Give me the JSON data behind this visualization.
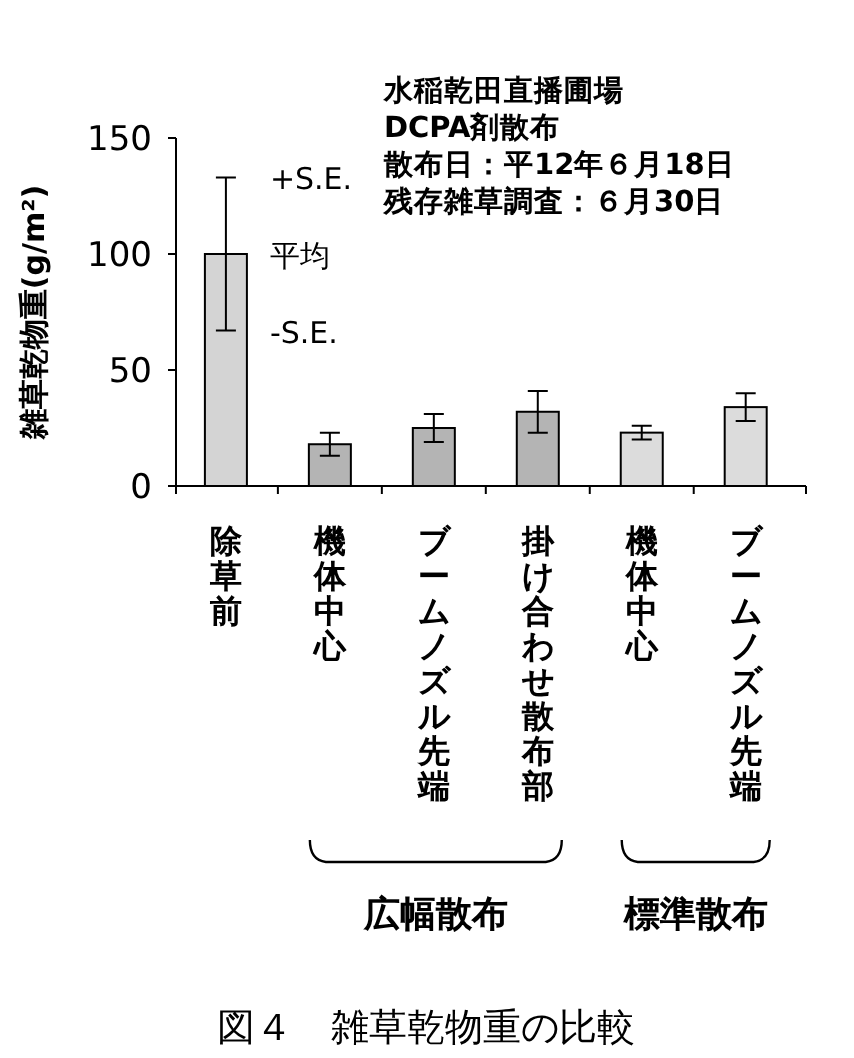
{
  "chart_data": {
    "type": "bar",
    "title": "図４　雑草乾物重の比較",
    "ylabel": "雑草乾物重(g/m²)",
    "categories": [
      "除草前",
      "機体中心",
      "ブームノズル先端",
      "掛け合わせ散布部",
      "機体中心",
      "ブームノズル先端"
    ],
    "values": [
      100,
      18,
      25,
      32,
      23,
      34
    ],
    "errors": [
      33,
      5,
      6,
      9,
      3,
      6
    ],
    "colors": [
      "#d4d4d4",
      "#b4b4b4",
      "#b4b4b4",
      "#b4b4b4",
      "#dcdcdc",
      "#dcdcdc"
    ],
    "ylim": [
      0,
      150
    ],
    "yticks": [
      0,
      50,
      100,
      150
    ],
    "annotations": [
      {
        "text": "+S.E.",
        "x": "除草前",
        "y": 133
      },
      {
        "text": "平均",
        "x": "除草前",
        "y": 100
      },
      {
        "text": "-S.E.",
        "x": "除草前",
        "y": 67
      },
      "水稲乾田直播圃場",
      "DCPA剤散布",
      "散布日：平12年６月18日",
      "残存雑草調査：６月30日",
      "広幅散布",
      "標準散布"
    ]
  }
}
